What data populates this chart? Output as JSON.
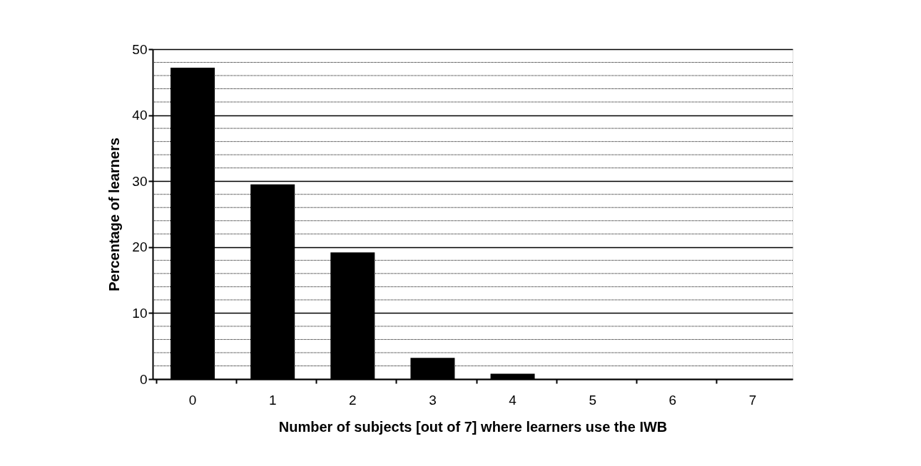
{
  "chart_data": {
    "type": "bar",
    "xlabel": "Number of subjects [out of 7] where learners use the IWB",
    "ylabel": "Percentage of learners",
    "categories": [
      "0",
      "1",
      "2",
      "3",
      "4",
      "5",
      "6",
      "7"
    ],
    "values": [
      47.2,
      29.5,
      19.2,
      3.2,
      0.8,
      0,
      0,
      0
    ],
    "color": "#000000",
    "ylim": [
      0,
      50
    ],
    "yticks": [
      0,
      {
        "value": 2,
        "label": null
      },
      {
        "value": 4,
        "label": null
      },
      {
        "value": 6,
        "label": null
      },
      {
        "value": 8,
        "label": null
      },
      10,
      {
        "value": 12,
        "label": null
      },
      {
        "value": 14,
        "label": null
      },
      {
        "value": 16,
        "label": null
      },
      {
        "value": 18,
        "label": null
      },
      20,
      {
        "value": 22,
        "label": null
      },
      {
        "value": 24,
        "label": null
      },
      {
        "value": 26,
        "label": null
      },
      {
        "value": 28,
        "label": null
      },
      30,
      {
        "value": 32,
        "label": null
      },
      {
        "value": 34,
        "label": null
      },
      {
        "value": 36,
        "label": null
      },
      {
        "value": 38,
        "label": null
      },
      40,
      {
        "value": 42,
        "label": null
      },
      {
        "value": 44,
        "label": null
      },
      {
        "value": 46,
        "label": null
      },
      {
        "value": 48,
        "label": null
      },
      50
    ],
    "grid": "y"
  }
}
